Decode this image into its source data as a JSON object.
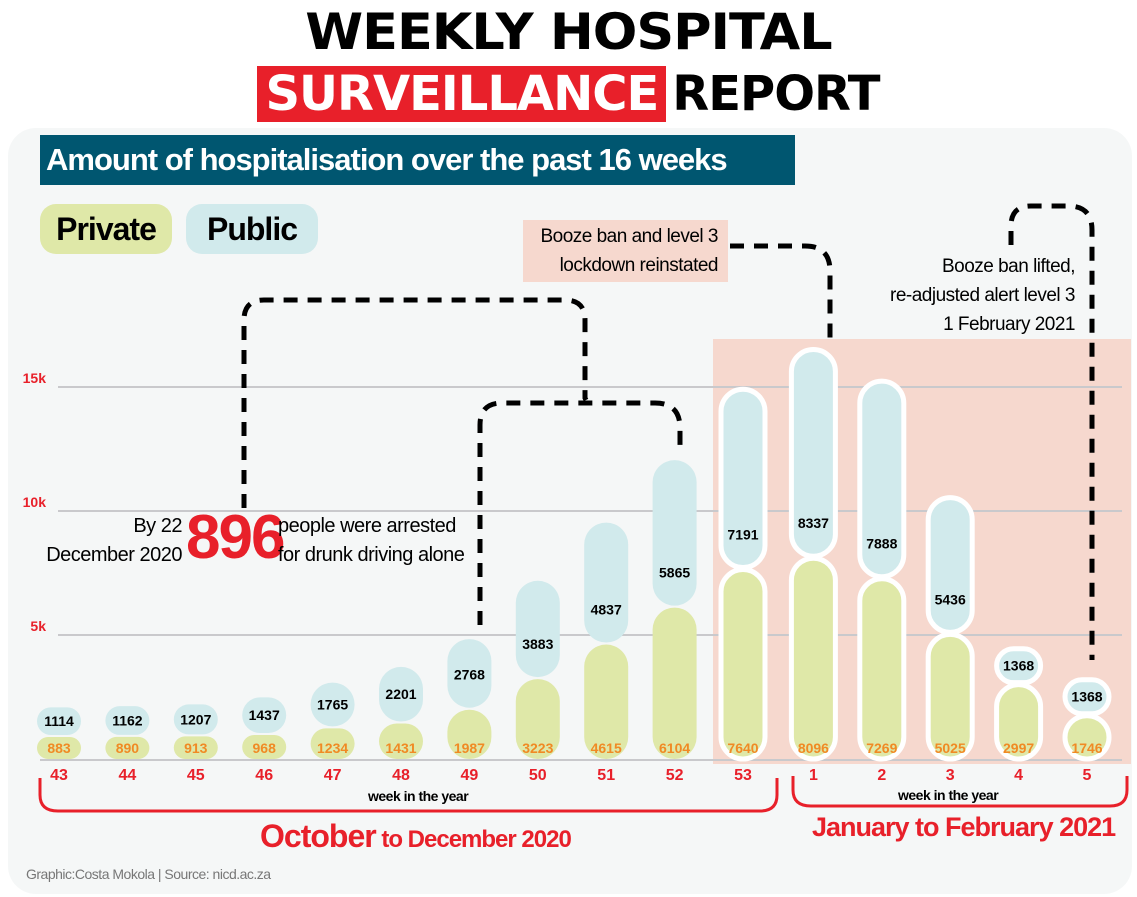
{
  "header": {
    "title_line1": "WEEKLY HOSPITAL",
    "title_line2_highlight": "SURVEILLANCE",
    "title_line2_rest": "REPORT"
  },
  "subtitle": "Amount of hospitalisation over the past 16 weeks",
  "legend": {
    "private": "Private",
    "public": "Public"
  },
  "annotations": {
    "booze_ban_line1": "Booze ban and level 3",
    "booze_ban_line2": "lockdown reinstated",
    "lifted_line1": "Booze ban lifted,",
    "lifted_line2": "re-adjusted alert level 3",
    "lifted_line3": "1 February 2021",
    "arrest_left_line1": "By 22",
    "arrest_left_line2": "December 2020",
    "arrest_number": "896",
    "arrest_right_line1": "people were arrested",
    "arrest_right_line2": "for drunk driving alone"
  },
  "periods": {
    "first_a": "October",
    "first_b": " to December  2020",
    "second": "January to February 2021",
    "axis_label_1": "week in the year",
    "axis_label_2": "week in the year"
  },
  "credit": "Graphic:Costa Mokola | Source: nicd.ac.za",
  "colors": {
    "private": "#dfe8a8",
    "public": "#d1eaec",
    "accent_red": "#e8202a",
    "private_label": "#f08a24",
    "highlight_region": "#f6d8ce",
    "title_bar": "#005670",
    "gridline": "#c9c9cc"
  },
  "chart_data": {
    "type": "bar",
    "stacked": true,
    "title": "Amount of hospitalisation over the past 16 weeks",
    "xlabel": "week in the year",
    "ylabel": "",
    "ylim": [
      0,
      15000
    ],
    "yticks": [
      5000,
      10000,
      15000
    ],
    "ytick_labels": [
      "5k",
      "10k",
      "15k"
    ],
    "grid": true,
    "legend_position": "top-left",
    "categories": [
      "43",
      "44",
      "45",
      "46",
      "47",
      "48",
      "49",
      "50",
      "51",
      "52",
      "53",
      "1",
      "2",
      "3",
      "4",
      "5"
    ],
    "series": [
      {
        "name": "Private",
        "values": [
          883,
          890,
          913,
          968,
          1234,
          1431,
          1987,
          3223,
          4615,
          6104,
          7640,
          8096,
          7269,
          5025,
          2997,
          1746
        ]
      },
      {
        "name": "Public",
        "values": [
          1114,
          1162,
          1207,
          1437,
          1765,
          2201,
          2768,
          3883,
          4837,
          5865,
          7191,
          8337,
          7888,
          5436,
          1368,
          1368
        ]
      }
    ],
    "highlighted_categories": [
      "53",
      "1",
      "2",
      "3",
      "4",
      "5"
    ]
  }
}
